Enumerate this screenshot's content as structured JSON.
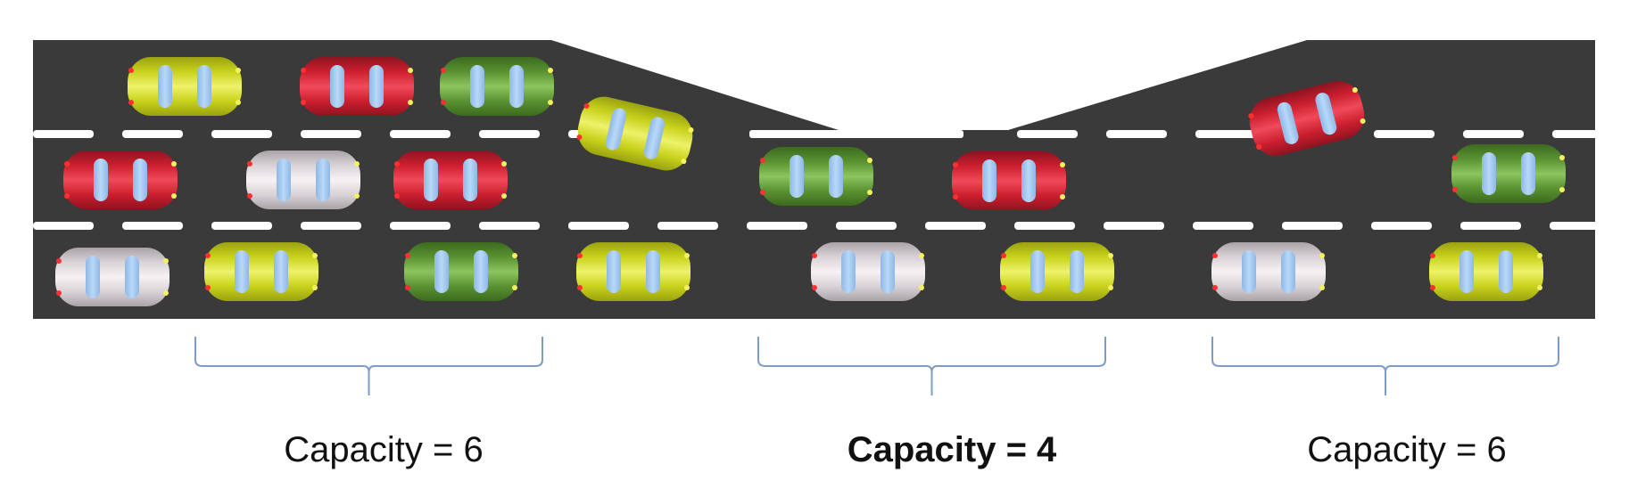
{
  "colors": {
    "road": "#3a3a3a",
    "lane_marking": "#ffffff",
    "brace": "#7f9cc4",
    "car_yellow": "#c8d21c",
    "car_red": "#cc1f2f",
    "car_green": "#5a9232",
    "car_white": "#d9d2d6",
    "car_window": "#b8d8f8"
  },
  "road": {
    "lanes_wide_section": 3,
    "lanes_narrow_section": 2
  },
  "sections": [
    {
      "id": "left",
      "label": "Capacity = 6",
      "bold": false
    },
    {
      "id": "middle",
      "label": "Capacity = 4",
      "bold": true
    },
    {
      "id": "right",
      "label": "Capacity = 6",
      "bold": false
    }
  ],
  "cars": [
    {
      "color": "yellow"
    },
    {
      "color": "red"
    },
    {
      "color": "green"
    },
    {
      "color": "red"
    },
    {
      "color": "white"
    },
    {
      "color": "red"
    },
    {
      "color": "white"
    },
    {
      "color": "yellow"
    },
    {
      "color": "green"
    },
    {
      "color": "yellow"
    },
    {
      "color": "yellow"
    },
    {
      "color": "green"
    },
    {
      "color": "red"
    },
    {
      "color": "white"
    },
    {
      "color": "yellow"
    },
    {
      "color": "red"
    },
    {
      "color": "green"
    },
    {
      "color": "white"
    },
    {
      "color": "yellow"
    }
  ]
}
